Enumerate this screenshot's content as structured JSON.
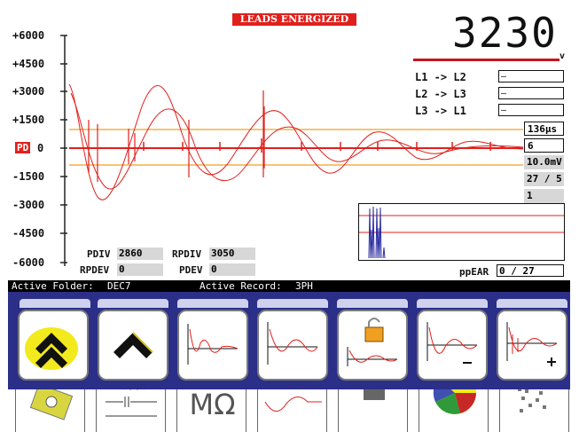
{
  "banner": "LEADS ENERGIZED",
  "voltage": {
    "value": "3230",
    "unit": "v"
  },
  "y_axis": {
    "ticks": [
      "+6000",
      "+4500",
      "+3000",
      "+1500",
      "0",
      "-1500",
      "-3000",
      "-4500",
      "-6000"
    ],
    "zero_marker": "PD"
  },
  "leads": [
    {
      "label": "L1 -> L2",
      "value": "–"
    },
    {
      "label": "L2 -> L3",
      "value": "–"
    },
    {
      "label": "L3 -> L1",
      "value": "–"
    }
  ],
  "readings": {
    "time": "136µs",
    "count": "6",
    "level": "10.0mV",
    "ratio": "27 / 5",
    "index": "1"
  },
  "stats": {
    "pdiv_label": "PDIV",
    "pdiv_value": "2860",
    "rpdiv_label": "RPDIV",
    "rpdiv_value": "3050",
    "rpdev_label": "RPDEV",
    "rpdev_value": "0",
    "pdev_label": "PDEV",
    "pdev_value": "0",
    "ppear_label": "ppEAR",
    "ppear_value": "0 / 27"
  },
  "status_bar": {
    "folder_label": "Active Folder:",
    "folder": "DEC7",
    "record_label": "Active Record:",
    "record": "3PH"
  },
  "bottom_icons": [
    "motor-icon",
    "capacitor-icon",
    "insulation-resistance-icon",
    "surge-wave-icon",
    "save-icon",
    "pie-chart-icon",
    "noise-pattern-icon"
  ],
  "bottom_text": {
    "megohm": "MΩ"
  },
  "toolbar_icons": [
    "double-chevron-up-icon",
    "chevron-up-icon",
    "surge-decay-icon",
    "surge-wave-icon",
    "lock-wave-icon",
    "wave-minus-icon",
    "wave-plus-icon"
  ],
  "colors": {
    "trace": "#e0201c",
    "threshold": "#f0a020",
    "tray": "#2b2f88",
    "highlight": "#f2ea1c"
  }
}
